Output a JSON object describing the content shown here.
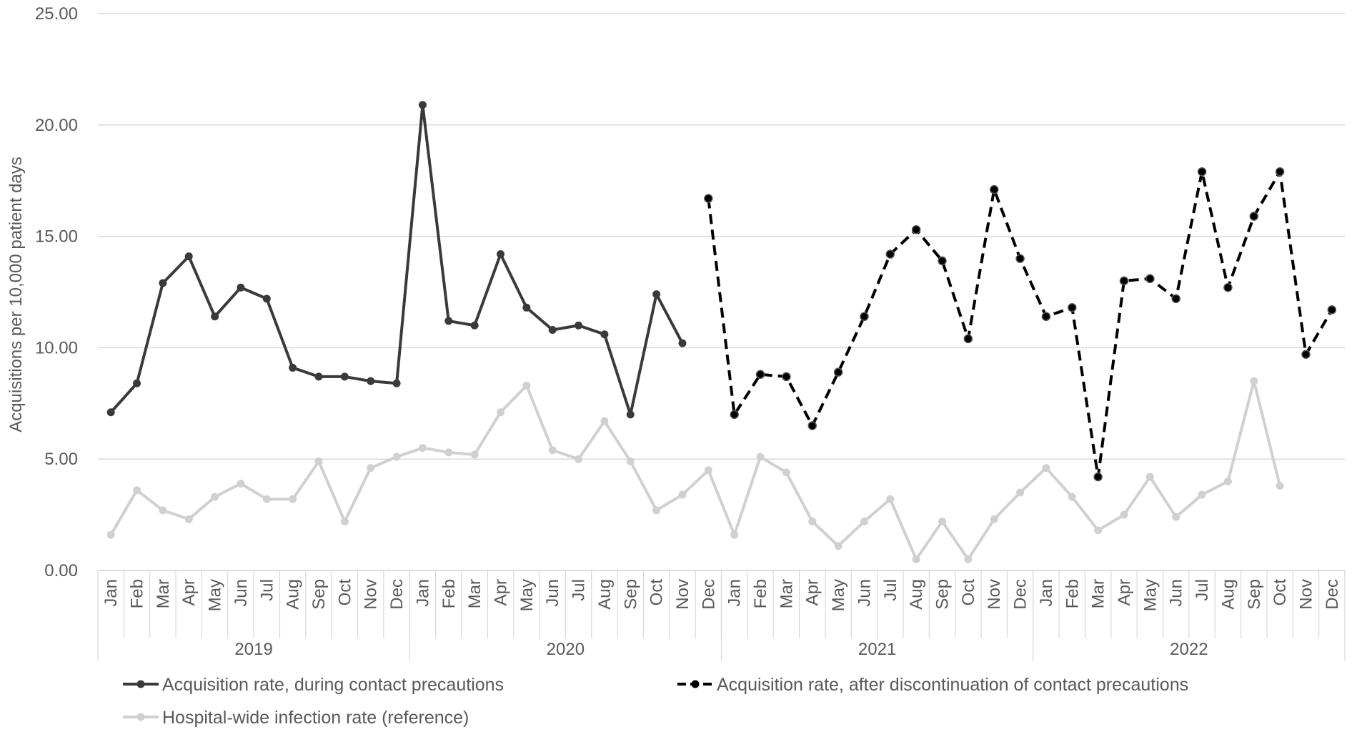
{
  "chart_data": {
    "type": "line",
    "ylabel": "Acquisitions per 10,000 patient days",
    "xlabel": "",
    "ylim": [
      0,
      25
    ],
    "y_ticks": [
      "0.00",
      "5.00",
      "10.00",
      "15.00",
      "20.00",
      "25.00"
    ],
    "grid": "horizontal",
    "legend_position": "bottom",
    "years": [
      {
        "label": "2019",
        "months": [
          "Jan",
          "Feb",
          "Mar",
          "Apr",
          "May",
          "Jun",
          "Jul",
          "Aug",
          "Sep",
          "Oct",
          "Nov",
          "Dec"
        ]
      },
      {
        "label": "2020",
        "months": [
          "Jan",
          "Feb",
          "Mar",
          "Apr",
          "May",
          "Jun",
          "Jul",
          "Aug",
          "Sep",
          "Oct",
          "Nov",
          "Dec"
        ]
      },
      {
        "label": "2021",
        "months": [
          "Jan",
          "Feb",
          "Mar",
          "Apr",
          "May",
          "Jun",
          "Jul",
          "Aug",
          "Sep",
          "Oct",
          "Nov",
          "Dec"
        ]
      },
      {
        "label": "2022",
        "months": [
          "Jan",
          "Feb",
          "Mar",
          "Apr",
          "May",
          "Jun",
          "Jul",
          "Aug",
          "Sep",
          "Oct",
          "Nov",
          "Dec"
        ]
      }
    ],
    "series": [
      {
        "name": "Acquisition rate, during contact precautions",
        "color": "#3a3a3a",
        "style": "solid",
        "values": [
          7.1,
          8.4,
          12.9,
          14.1,
          11.4,
          12.7,
          12.2,
          9.1,
          8.7,
          8.7,
          8.5,
          8.4,
          20.9,
          11.2,
          11.0,
          14.2,
          11.8,
          10.8,
          11.0,
          10.6,
          7.0,
          12.4,
          10.2,
          null,
          null,
          null,
          null,
          null,
          null,
          null,
          null,
          null,
          null,
          null,
          null,
          null,
          null,
          null,
          null,
          null,
          null,
          null,
          null,
          null,
          null,
          null,
          null,
          null
        ]
      },
      {
        "name": "Acquisition rate, after discontinuation of contact precautions",
        "color": "#000000",
        "style": "dashed",
        "values": [
          null,
          null,
          null,
          null,
          null,
          null,
          null,
          null,
          null,
          null,
          null,
          null,
          null,
          null,
          null,
          null,
          null,
          null,
          null,
          null,
          null,
          null,
          null,
          16.7,
          7.0,
          8.8,
          8.7,
          6.5,
          8.9,
          11.4,
          14.2,
          15.3,
          13.9,
          10.4,
          17.1,
          14.0,
          11.4,
          11.8,
          4.2,
          13.0,
          13.1,
          12.2,
          17.9,
          12.7,
          15.9,
          17.9,
          9.7,
          11.7
        ]
      },
      {
        "name": "Hospital-wide infection rate (reference)",
        "color": "#d0d0d0",
        "style": "solid",
        "values": [
          1.6,
          3.6,
          2.7,
          2.3,
          3.3,
          3.9,
          3.2,
          3.2,
          4.9,
          2.2,
          4.6,
          5.1,
          5.5,
          5.3,
          5.2,
          7.1,
          8.3,
          5.4,
          5.0,
          6.7,
          4.9,
          2.7,
          3.4,
          4.5,
          1.6,
          5.1,
          4.4,
          2.2,
          1.1,
          2.2,
          3.2,
          0.5,
          2.2,
          0.5,
          2.3,
          3.5,
          4.6,
          3.3,
          1.8,
          2.5,
          4.2,
          2.4,
          3.4,
          4.0,
          8.5,
          3.8,
          null,
          null
        ]
      }
    ]
  }
}
